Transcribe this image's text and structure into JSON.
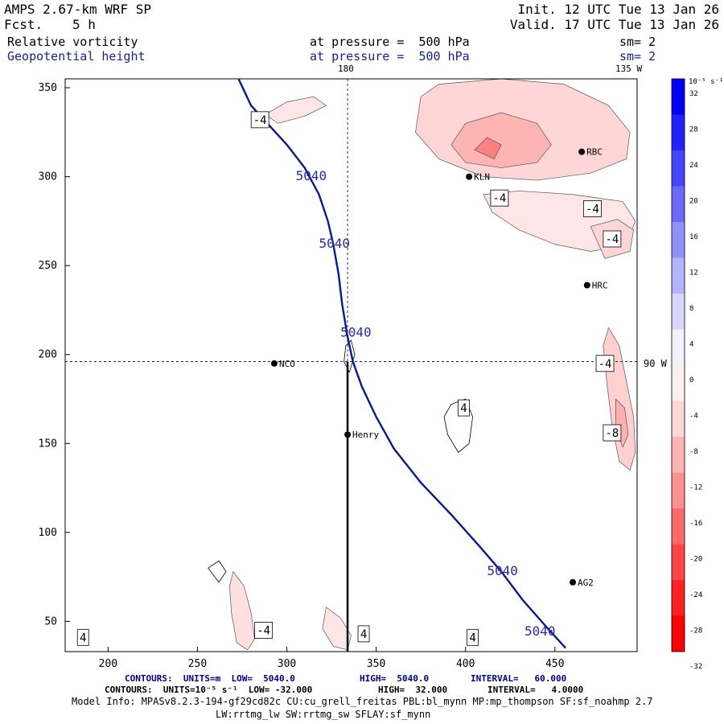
{
  "header": {
    "title": "AMPS 2.67-km WRF SP",
    "forecast_label": "Fcst.",
    "forecast_value": "5 h",
    "init": "Init. 12 UTC Tue 13 Jan 26",
    "valid": "Valid. 17 UTC Tue 13 Jan 26",
    "field1_name": "Relative vorticity",
    "field1_level": "at pressure =  500 hPa",
    "field1_sm": "sm= 2",
    "field2_name": "Geopotential height",
    "field2_level": "at pressure =  500 hPa",
    "field2_sm": "sm= 2"
  },
  "map_labels": {
    "top_lon_180": "180",
    "top_lon_135w": "135 W",
    "right_lat_90w": "90 W"
  },
  "colorbar": {
    "unit_label": "10⁻⁵ s⁻¹",
    "ticks": [
      "32",
      "28",
      "24",
      "20",
      "16",
      "12",
      "8",
      "4",
      "0",
      "-4",
      "-8",
      "-12",
      "-16",
      "-20",
      "-24",
      "-28",
      "-32"
    ],
    "colors": [
      "#0000ff",
      "#2222ff",
      "#4545ff",
      "#6a6aff",
      "#9090ff",
      "#b4b4ff",
      "#d6d6ff",
      "#f2f2ff",
      "#fff0f0",
      "#ffd6d6",
      "#ffb4b4",
      "#ff9090",
      "#ff6a6a",
      "#ff4545",
      "#ff2222",
      "#ff0000"
    ]
  },
  "stations": [
    {
      "name": "NCO",
      "x": 293,
      "y": 195
    },
    {
      "name": "Henry",
      "x": 334,
      "y": 155
    },
    {
      "name": "KLN",
      "x": 402,
      "y": 300
    },
    {
      "name": "HRC",
      "x": 468,
      "y": 239
    },
    {
      "name": "AG2",
      "x": 460,
      "y": 72
    },
    {
      "name": "RBC",
      "x": 465,
      "y": 314
    }
  ],
  "footer": {
    "line1_contours": "CONTOURS:  UNITS=m  LOW=  5040.0",
    "line1_high": "HIGH=  5040.0",
    "line1_interval": "INTERVAL=   60.000",
    "line2_contours": "CONTOURS:  UNITS=10⁻⁵ s⁻¹  LOW= -32.000",
    "line2_high": "HIGH=  32.000",
    "line2_interval": "INTERVAL=   4.0000",
    "model_info": "Model Info: MPASv8.2.3-194-gf29cd82c CU:cu_grell_freitas PBL:bl_mynn MP:mp_thompson SF:sf_noahmp 2.7",
    "model_info2": "LW:rrtmg_lw SW:rrtmg_sw SFLAY:sf_mynn"
  },
  "chart_data": {
    "type": "contour",
    "title": "Relative vorticity / Geopotential height at 500 hPa",
    "xlim": [
      176,
      496
    ],
    "ylim": [
      33,
      355
    ],
    "x_ticks": [
      200,
      250,
      300,
      350,
      400,
      450
    ],
    "y_ticks": [
      50,
      100,
      150,
      200,
      250,
      300,
      350
    ],
    "cross_section": {
      "x_line": 334,
      "y_line": 196
    },
    "height_contour": {
      "value": 5040,
      "units": "m",
      "points": [
        [
          273,
          355
        ],
        [
          280,
          340
        ],
        [
          300,
          318
        ],
        [
          310,
          305
        ],
        [
          318,
          290
        ],
        [
          323,
          275
        ],
        [
          326,
          262
        ],
        [
          329,
          245
        ],
        [
          331,
          228
        ],
        [
          334,
          210
        ],
        [
          337,
          196
        ],
        [
          342,
          182
        ],
        [
          350,
          165
        ],
        [
          360,
          147
        ],
        [
          375,
          128
        ],
        [
          392,
          110
        ],
        [
          408,
          92
        ],
        [
          420,
          78
        ],
        [
          432,
          62
        ],
        [
          446,
          46
        ],
        [
          456,
          35
        ]
      ],
      "labels": [
        {
          "text": "5040",
          "x": 305,
          "y": 298
        },
        {
          "text": "5040",
          "x": 318,
          "y": 260
        },
        {
          "text": "5040",
          "x": 330,
          "y": 210
        },
        {
          "text": "5040",
          "x": 412,
          "y": 76
        },
        {
          "text": "5040",
          "x": 433,
          "y": 42
        }
      ]
    },
    "vorticity_labels": [
      {
        "text": "-4",
        "x": 285,
        "y": 332
      },
      {
        "text": "-4",
        "x": 419,
        "y": 288
      },
      {
        "text": "-4",
        "x": 471,
        "y": 282
      },
      {
        "text": "-4",
        "x": 482,
        "y": 265
      },
      {
        "text": "-4",
        "x": 478,
        "y": 195
      },
      {
        "text": "-8",
        "x": 482,
        "y": 156
      },
      {
        "text": "4",
        "x": 399,
        "y": 170
      },
      {
        "text": "-4",
        "x": 287,
        "y": 45
      },
      {
        "text": "4",
        "x": 343,
        "y": 43
      },
      {
        "text": "4",
        "x": 404,
        "y": 41
      },
      {
        "text": "4",
        "x": 186,
        "y": 41
      }
    ]
  }
}
